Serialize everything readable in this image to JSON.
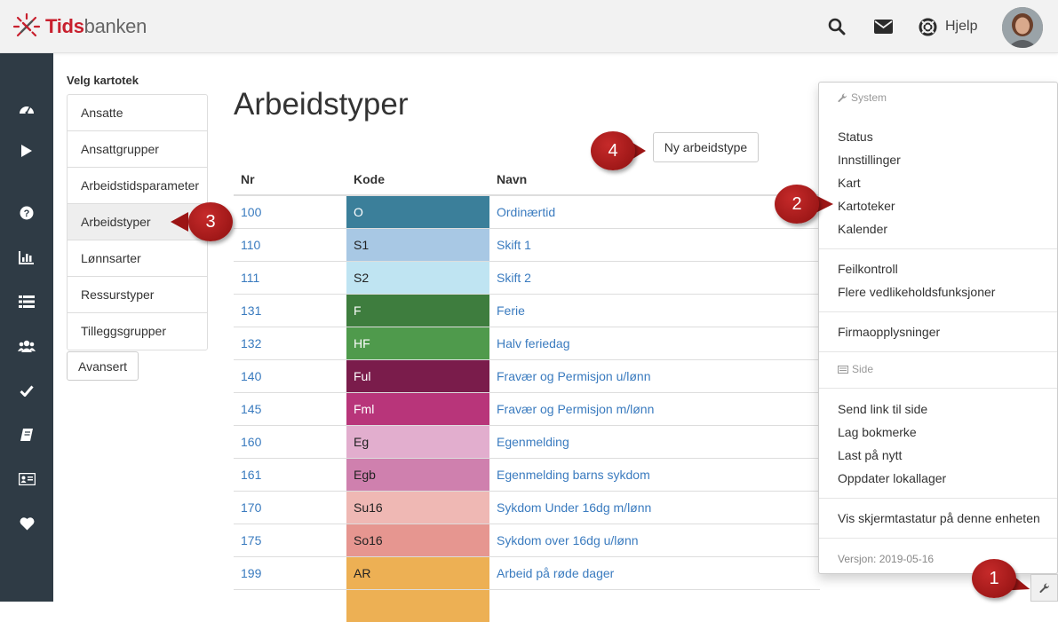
{
  "header": {
    "logo_part1": "Tids",
    "logo_part2": "banken",
    "help_label": "Hjelp",
    "icons": [
      "search-icon",
      "mail-icon",
      "lifebuoy-icon"
    ]
  },
  "sidenav": {
    "icons": [
      "dashboard-icon",
      "play-icon",
      "question-icon",
      "bar-chart-icon",
      "list-icon",
      "users-icon",
      "check-icon",
      "book-icon",
      "id-card-icon",
      "heart-icon"
    ]
  },
  "kartotek": {
    "title": "Velg kartotek",
    "items": [
      "Ansatte",
      "Ansattgrupper",
      "Arbeidstidsparameter",
      "Arbeidstyper",
      "Lønnsarter",
      "Ressurstyper",
      "Tilleggsgrupper"
    ],
    "active": "Arbeidstyper",
    "advanced_label": "Avansert"
  },
  "main": {
    "title": "Arbeidstyper",
    "new_button": "Ny arbeidstype",
    "columns": [
      "Nr",
      "Kode",
      "Navn"
    ],
    "rows": [
      {
        "nr": "100",
        "kode": "O",
        "navn": "Ordinærtid",
        "color": "#3b7f9a",
        "text": "#ffffff"
      },
      {
        "nr": "110",
        "kode": "S1",
        "navn": "Skift 1",
        "color": "#a8c8e4",
        "text": "#222222"
      },
      {
        "nr": "111",
        "kode": "S2",
        "navn": "Skift 2",
        "color": "#bfe4f2",
        "text": "#222222"
      },
      {
        "nr": "131",
        "kode": "F",
        "navn": "Ferie",
        "color": "#3e7d3e",
        "text": "#ffffff"
      },
      {
        "nr": "132",
        "kode": "HF",
        "navn": "Halv feriedag",
        "color": "#4f9a4c",
        "text": "#ffffff"
      },
      {
        "nr": "140",
        "kode": "Ful",
        "navn": "Fravær og Permisjon u/lønn",
        "color": "#7a1c4b",
        "text": "#ffffff"
      },
      {
        "nr": "145",
        "kode": "Fml",
        "navn": "Fravær og Permisjon m/lønn",
        "color": "#b8357a",
        "text": "#ffffff"
      },
      {
        "nr": "160",
        "kode": "Eg",
        "navn": "Egenmelding",
        "color": "#e2aece",
        "text": "#222222"
      },
      {
        "nr": "161",
        "kode": "Egb",
        "navn": "Egenmelding barns sykdom",
        "color": "#cf80ae",
        "text": "#222222"
      },
      {
        "nr": "170",
        "kode": "Su16",
        "navn": "Sykdom Under 16dg m/lønn",
        "color": "#efb8b4",
        "text": "#222222"
      },
      {
        "nr": "175",
        "kode": "So16",
        "navn": "Sykdom over 16dg u/lønn",
        "color": "#e69690",
        "text": "#222222"
      },
      {
        "nr": "199",
        "kode": "AR",
        "navn": "Arbeid på røde dager",
        "color": "#edb054",
        "text": "#222222"
      },
      {
        "nr": "",
        "kode": "",
        "navn": "",
        "color": "#edb054",
        "text": "#222222"
      }
    ]
  },
  "menu": {
    "system_header": "System",
    "system_items": [
      "Status",
      "Innstillinger",
      "Kart",
      "Kartoteker",
      "Kalender"
    ],
    "maint_items": [
      "Feilkontroll",
      "Flere vedlikeholdsfunksjoner"
    ],
    "company_item": "Firmaopplysninger",
    "side_header": "Side",
    "side_items": [
      "Send link til side",
      "Lag bokmerke",
      "Last på nytt",
      "Oppdater lokallager"
    ],
    "keyboard_item": "Vis skjermtastatur på denne enheten",
    "version": "Versjon: 2019-05-16"
  },
  "callouts": [
    "1",
    "2",
    "3",
    "4"
  ]
}
